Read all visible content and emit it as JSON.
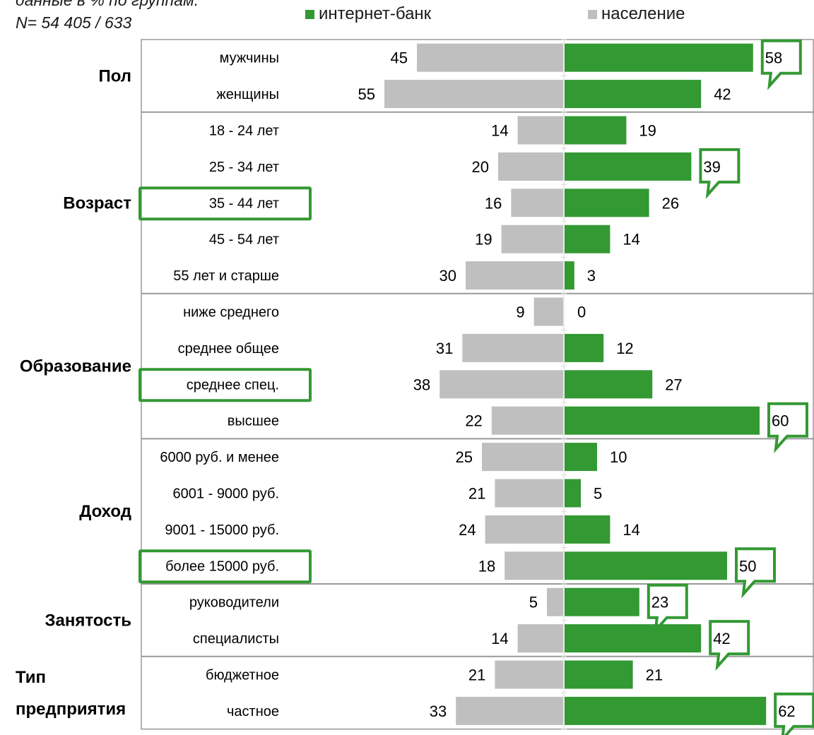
{
  "note_lines": [
    "данные в % по группам.",
    "N= 54 405 / 633"
  ],
  "colors": {
    "internet_bank": "#339933",
    "population": "#bfbfbf",
    "frame": "#999999",
    "highlight": "#339933"
  },
  "chart_data": {
    "type": "bar",
    "orientation": "horizontal-diverging",
    "legend": [
      {
        "key": "internet_bank",
        "label": "интернет-банк",
        "color": "#339933"
      },
      {
        "key": "population",
        "label": "население",
        "color": "#bfbfbf"
      }
    ],
    "groups": [
      {
        "name": "Пол",
        "categories": [
          {
            "label": "мужчины",
            "population": 45,
            "internet_bank": 58,
            "callout": true
          },
          {
            "label": "женщины",
            "population": 55,
            "internet_bank": 42
          }
        ]
      },
      {
        "name": "Возраст",
        "categories": [
          {
            "label": "18 - 24 лет",
            "population": 14,
            "internet_bank": 19
          },
          {
            "label": "25 - 34 лет",
            "population": 20,
            "internet_bank": 39,
            "callout": true
          },
          {
            "label": "35 - 44 лет",
            "population": 16,
            "internet_bank": 26,
            "highlight_label": true
          },
          {
            "label": "45 - 54 лет",
            "population": 19,
            "internet_bank": 14
          },
          {
            "label": "55 лет и старше",
            "population": 30,
            "internet_bank": 3
          }
        ]
      },
      {
        "name": "Образование",
        "categories": [
          {
            "label": "ниже среднего",
            "population": 9,
            "internet_bank": 0
          },
          {
            "label": "среднее общее",
            "population": 31,
            "internet_bank": 12
          },
          {
            "label": "среднее спец.",
            "population": 38,
            "internet_bank": 27,
            "highlight_label": true
          },
          {
            "label": "высшее",
            "population": 22,
            "internet_bank": 60,
            "callout": true
          }
        ]
      },
      {
        "name": "Доход",
        "categories": [
          {
            "label": "6000 руб. и менее",
            "population": 25,
            "internet_bank": 10
          },
          {
            "label": "6001 - 9000 руб.",
            "population": 21,
            "internet_bank": 5
          },
          {
            "label": "9001 - 15000 руб.",
            "population": 24,
            "internet_bank": 14
          },
          {
            "label": "более 15000 руб.",
            "population": 18,
            "internet_bank": 50,
            "callout": true,
            "highlight_label": true
          }
        ]
      },
      {
        "name": "Занятость",
        "categories": [
          {
            "label": "руководители",
            "population": 5,
            "internet_bank": 23,
            "callout": true
          },
          {
            "label": "специалисты",
            "population": 14,
            "internet_bank": 42,
            "callout": true
          }
        ]
      },
      {
        "name": "Тип предприятия",
        "name_lines": [
          "Тип",
          "предприятия"
        ],
        "categories": [
          {
            "label": "бюджетное",
            "population": 21,
            "internet_bank": 21
          },
          {
            "label": "частное",
            "population": 33,
            "internet_bank": 62,
            "callout": true
          }
        ]
      }
    ],
    "xlim": [
      0,
      65
    ]
  }
}
